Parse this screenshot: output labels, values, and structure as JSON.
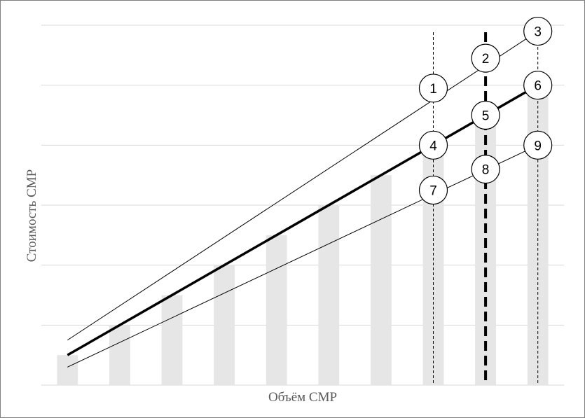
{
  "chart_data": {
    "type": "bar",
    "xlabel": "Объём СМР",
    "ylabel": "Стоимость СМР",
    "grid": true,
    "legend": "none",
    "categories": [
      "",
      "",
      "",
      "",
      "",
      "",
      "",
      "",
      "",
      ""
    ],
    "values": [
      0.5,
      1.0,
      1.5,
      2.0,
      2.5,
      3.0,
      3.5,
      4.0,
      4.5,
      5.0
    ],
    "ylim": [
      0,
      6
    ],
    "bar_color": "#e6e6e6",
    "grid_color": "#d9d9d9",
    "series": [
      {
        "style": "thick",
        "color": "#000000",
        "start": [
          1,
          0.5
        ],
        "end": [
          10,
          5.0
        ]
      },
      {
        "style": "thin",
        "color": "#000000",
        "start": [
          1,
          0.75
        ],
        "end": [
          10,
          5.9
        ]
      },
      {
        "style": "thin",
        "color": "#000000",
        "start": [
          1,
          0.3
        ],
        "end": [
          10,
          4.0
        ]
      }
    ],
    "verticals": [
      {
        "x": 8,
        "style": "thin-dashed"
      },
      {
        "x": 9,
        "style": "thick-dashed"
      },
      {
        "x": 10,
        "style": "thin-dashed"
      }
    ],
    "markers": [
      {
        "label": "1",
        "x": 8,
        "y": 4.95
      },
      {
        "label": "2",
        "x": 9,
        "y": 5.45
      },
      {
        "label": "3",
        "x": 10,
        "y": 5.9
      },
      {
        "label": "4",
        "x": 8,
        "y": 4.0
      },
      {
        "label": "5",
        "x": 9,
        "y": 4.5
      },
      {
        "label": "6",
        "x": 10,
        "y": 5.0
      },
      {
        "label": "7",
        "x": 8,
        "y": 3.25
      },
      {
        "label": "8",
        "x": 9,
        "y": 3.6
      },
      {
        "label": "9",
        "x": 10,
        "y": 4.0
      }
    ]
  }
}
